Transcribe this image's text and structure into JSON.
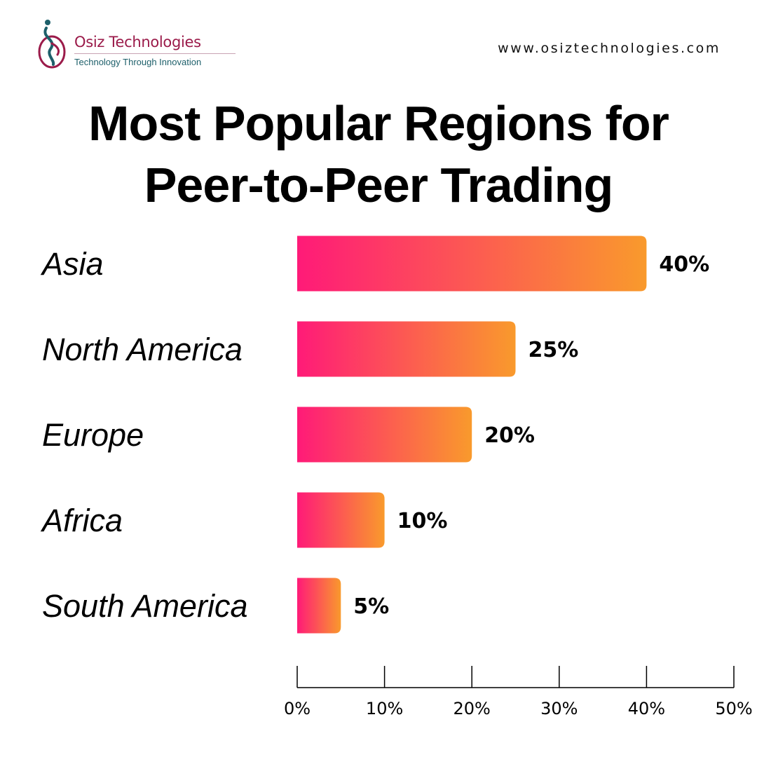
{
  "header": {
    "logo_name": "Osiz Technologies",
    "logo_tagline": "Technology Through Innovation",
    "website": "www.osiztechnologies.com"
  },
  "colors": {
    "bar_gradient_start": "#ff1a78",
    "bar_gradient_end": "#f99a2c",
    "logo_primary": "#9b1b4a",
    "logo_secondary": "#1d5f6a"
  },
  "chart_data": {
    "type": "bar",
    "orientation": "horizontal",
    "title_lines": [
      "Most Popular Regions for",
      "Peer-to-Peer Trading"
    ],
    "categories": [
      "Asia",
      "North America",
      "Europe",
      "Africa",
      "South America"
    ],
    "values": [
      40,
      25,
      20,
      10,
      5
    ],
    "value_labels": [
      "40%",
      "25%",
      "20%",
      "10%",
      "5%"
    ],
    "xlim": [
      0,
      50
    ],
    "x_ticks": [
      0,
      10,
      20,
      30,
      40,
      50
    ],
    "x_tick_labels": [
      "0%",
      "10%",
      "20%",
      "30%",
      "40%",
      "50%"
    ],
    "grid": false,
    "legend": "none"
  }
}
